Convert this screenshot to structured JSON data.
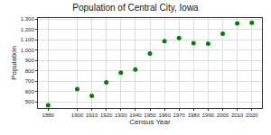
{
  "chart_data": {
    "type": "scatter",
    "title": "Population of Central City, Iowa",
    "x_label": "Census Year",
    "y_label": "Population",
    "x": [
      1880,
      1900,
      1910,
      1920,
      1930,
      1940,
      1950,
      1960,
      1970,
      1980,
      1990,
      2000,
      2010,
      2020
    ],
    "values": [
      466,
      623,
      557,
      687,
      781,
      812,
      966,
      1087,
      1116,
      1067,
      1063,
      1157,
      1257,
      1264
    ],
    "color": "green",
    "marker": "circle",
    "xlim": [
      1873,
      2027
    ],
    "xticks": [
      1880,
      1900,
      1910,
      1920,
      1930,
      1940,
      1950,
      1960,
      1970,
      1980,
      1990,
      2000,
      2010,
      2020
    ],
    "ylim": [
      440,
      1310
    ],
    "yticks": [
      500,
      600,
      700,
      800,
      900,
      {
        "value": 1000,
        "label": "1,000"
      },
      {
        "value": 1100,
        "label": "1,100"
      },
      {
        "value": 1200,
        "label": "1,200"
      },
      {
        "value": 1300,
        "label": "1,300"
      }
    ],
    "grid": true
  }
}
